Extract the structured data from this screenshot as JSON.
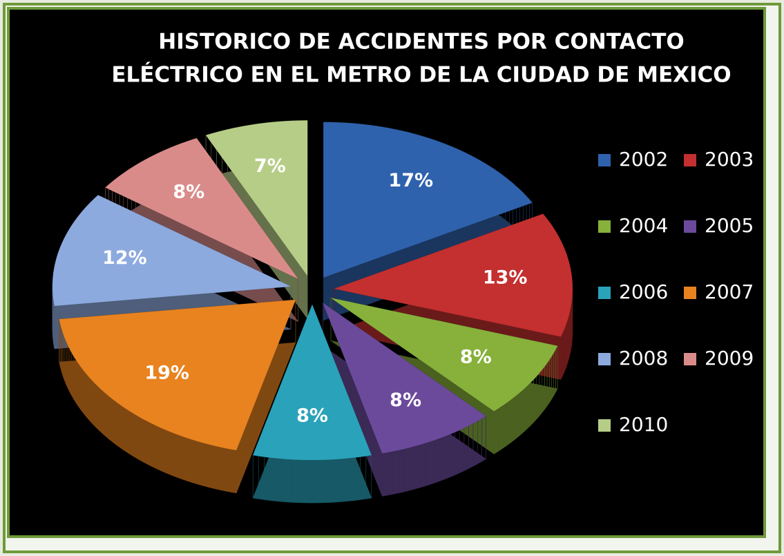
{
  "chart_data": {
    "type": "pie",
    "title": [
      "HISTORICO DE ACCIDENTES POR CONTACTO",
      "ELÉCTRICO EN EL METRO DE LA CIUDAD DE MEXICO"
    ],
    "categories": [
      "2002",
      "2003",
      "2004",
      "2005",
      "2006",
      "2007",
      "2008",
      "2009",
      "2010"
    ],
    "values": [
      17,
      13,
      8,
      8,
      8,
      19,
      12,
      8,
      7
    ],
    "value_labels": [
      "17%",
      "13%",
      "8%",
      "8%",
      "8%",
      "19%",
      "12%",
      "8%",
      "7%"
    ],
    "colors": [
      "#2f62ad",
      "#c3302f",
      "#87b13b",
      "#6b4a9c",
      "#2aa2ba",
      "#e8831f",
      "#8daadf",
      "#d98b8a",
      "#b6cd87"
    ],
    "legend": "right"
  }
}
